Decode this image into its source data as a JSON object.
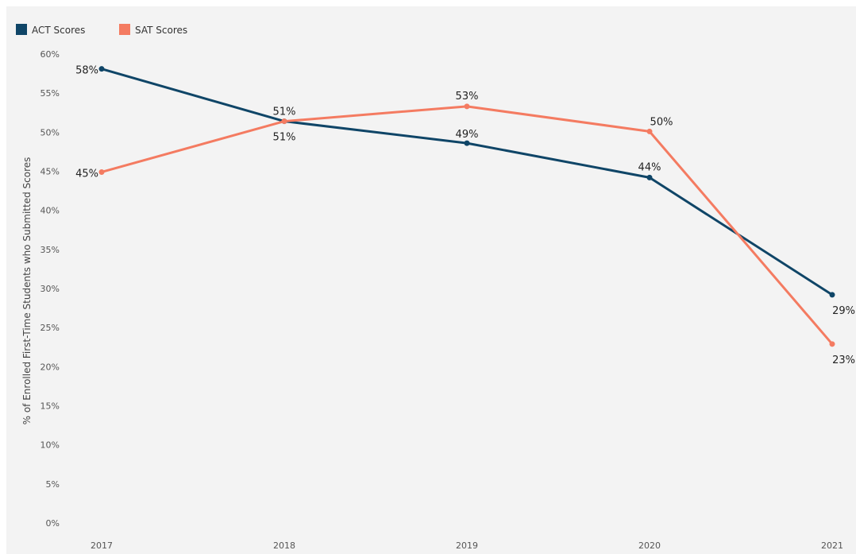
{
  "chart_data": {
    "type": "line",
    "title": "",
    "xlabel": "",
    "ylabel": "% of Enrolled First-Time Students who Submitted Scores",
    "categories": [
      "2017",
      "2018",
      "2019",
      "2020",
      "2021"
    ],
    "ylim": [
      0,
      60
    ],
    "yticks": [
      "0%",
      "5%",
      "10%",
      "15%",
      "20%",
      "25%",
      "30%",
      "35%",
      "40%",
      "45%",
      "50%",
      "55%",
      "60%"
    ],
    "grid": false,
    "legend_position": "top-left",
    "series": [
      {
        "name": "ACT Scores",
        "color": "#0f4567",
        "values": [
          58.1,
          51.4,
          48.6,
          44.2,
          29.2
        ],
        "labels": [
          "58%",
          "51%",
          "49%",
          "44%",
          "29%"
        ]
      },
      {
        "name": "SAT Scores",
        "color": "#f47b61",
        "values": [
          44.9,
          51.4,
          53.3,
          50.1,
          22.9
        ],
        "labels": [
          "45%",
          "51%",
          "53%",
          "50%",
          "23%"
        ]
      }
    ]
  }
}
